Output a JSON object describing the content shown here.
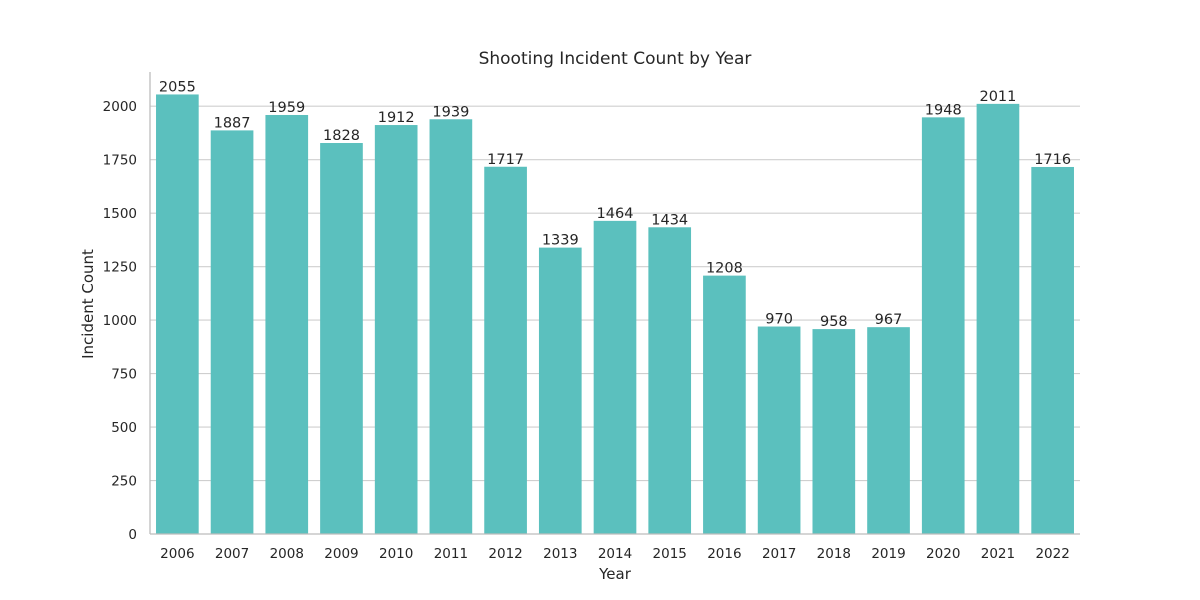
{
  "chart_data": {
    "type": "bar",
    "title": "Shooting Incident Count by Year",
    "xlabel": "Year",
    "ylabel": "Incident Count",
    "categories": [
      "2006",
      "2007",
      "2008",
      "2009",
      "2010",
      "2011",
      "2012",
      "2013",
      "2014",
      "2015",
      "2016",
      "2017",
      "2018",
      "2019",
      "2020",
      "2021",
      "2022"
    ],
    "values": [
      2055,
      1887,
      1959,
      1828,
      1912,
      1939,
      1717,
      1339,
      1464,
      1434,
      1208,
      970,
      958,
      967,
      1948,
      2011,
      1716
    ],
    "ylim": [
      0,
      2160
    ],
    "yticks": [
      0,
      250,
      500,
      750,
      1000,
      1250,
      1500,
      1750,
      2000
    ],
    "grid": "horizontal",
    "bar_color": "#5bc0be",
    "show_data_labels": true
  }
}
